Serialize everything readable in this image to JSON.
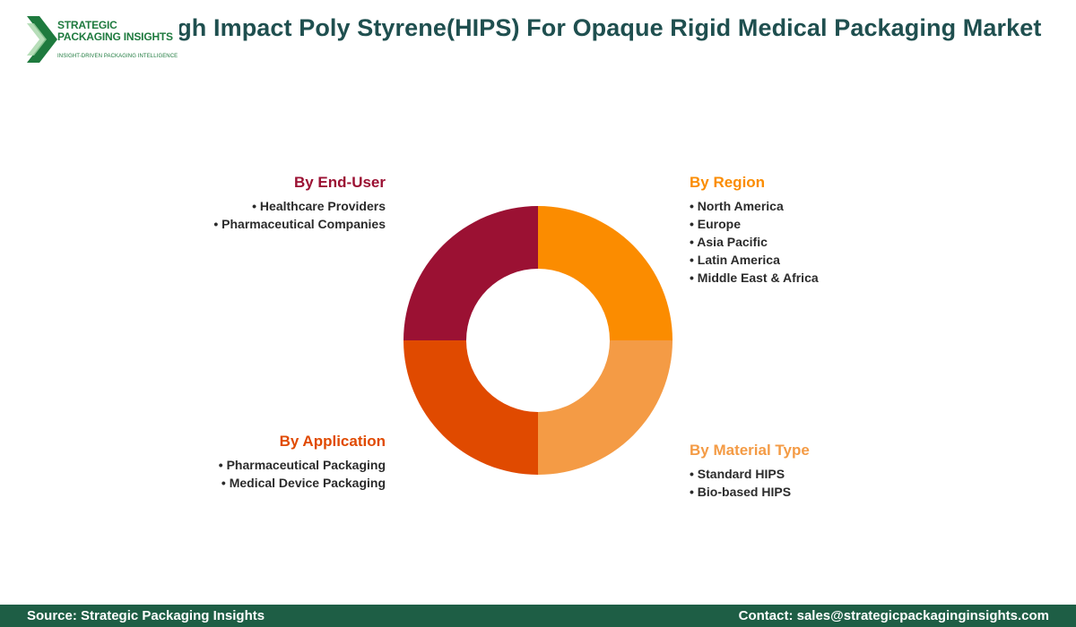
{
  "header": {
    "title": "High Impact Poly Styrene(HIPS) For Opaque Rigid Medical Packaging Market",
    "logo_line1": "STRATEGIC",
    "logo_line2": "PACKAGING INSIGHTS",
    "logo_tagline": "INSIGHT-DRIVEN PACKAGING INTELLIGENCE"
  },
  "chart_data": {
    "type": "pie",
    "donut": true,
    "segments": [
      {
        "name": "By Region",
        "value": 25,
        "color": "#fb8c00",
        "items": [
          "North America",
          "Europe",
          "Asia Pacific",
          "Latin America",
          "Middle East & Africa"
        ]
      },
      {
        "name": "By Material Type",
        "value": 25,
        "color": "#f49b45",
        "items": [
          "Standard HIPS",
          "Bio-based HIPS"
        ]
      },
      {
        "name": "By Application",
        "value": 25,
        "color": "#e04a00",
        "items": [
          "Pharmaceutical Packaging",
          "Medical Device Packaging"
        ]
      },
      {
        "name": "By End-User",
        "value": 25,
        "color": "#9b1133",
        "items": [
          "Healthcare Providers",
          "Pharmaceutical Companies"
        ]
      }
    ]
  },
  "footer": {
    "source": "Source: Strategic Packaging Insights",
    "contact": "Contact: sales@strategicpackaginginsights.com"
  }
}
